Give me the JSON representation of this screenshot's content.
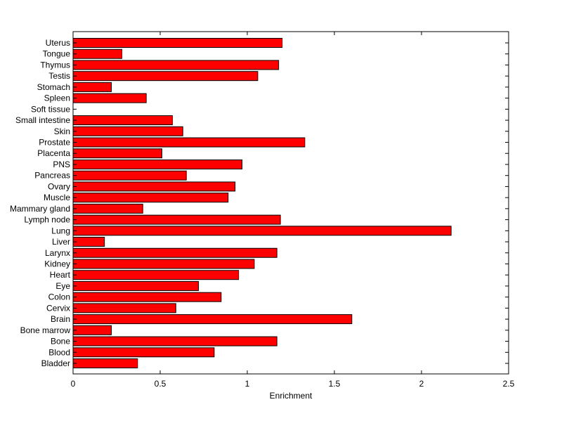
{
  "chart_data": {
    "type": "bar",
    "orientation": "horizontal",
    "categories": [
      "Bladder",
      "Blood",
      "Bone",
      "Bone marrow",
      "Brain",
      "Cervix",
      "Colon",
      "Eye",
      "Heart",
      "Kidney",
      "Larynx",
      "Liver",
      "Lung",
      "Lymph node",
      "Mammary gland",
      "Muscle",
      "Ovary",
      "Pancreas",
      "PNS",
      "Placenta",
      "Prostate",
      "Skin",
      "Small intestine",
      "Soft tissue",
      "Spleen",
      "Stomach",
      "Testis",
      "Thymus",
      "Tongue",
      "Uterus"
    ],
    "values": [
      0.37,
      0.81,
      1.17,
      0.22,
      1.6,
      0.59,
      0.85,
      0.72,
      0.95,
      1.04,
      1.17,
      0.18,
      2.17,
      1.19,
      0.4,
      0.89,
      0.93,
      0.65,
      0.97,
      0.51,
      1.33,
      0.63,
      0.57,
      0.0,
      0.42,
      0.22,
      1.06,
      1.18,
      0.28,
      1.2
    ],
    "xlabel": "Enrichment",
    "ylabel": "",
    "title": "",
    "xlim": [
      0,
      2.5
    ],
    "xticks": [
      0,
      0.5,
      1,
      1.5,
      2,
      2.5
    ],
    "xtick_labels": [
      "0",
      "0.5",
      "1",
      "1.5",
      "2",
      "2.5"
    ],
    "grid": false,
    "bar_color": "#ff0000",
    "edge_color": "#000000"
  }
}
